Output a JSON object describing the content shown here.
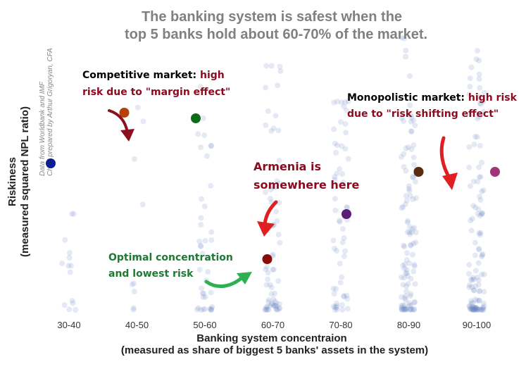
{
  "chart_data": {
    "type": "scatter",
    "title_line1": "The banking system is safest when the",
    "title_line2": "top 5 banks hold about 60-70% of the market.",
    "xlabel_line1": "Banking system concentraion",
    "xlabel_line2": "(measured as share of biggest 5 banks' assets in the system)",
    "ylabel_line1": "Riskiness",
    "ylabel_line2": "(measured squared NPL ratio)",
    "source_line1": "Data from Worldbank and IMF",
    "source_line2": "Chart prepared by Arthur Grigoryan, CFA",
    "categories": [
      "30-40",
      "40-50",
      "50-60",
      "60-70",
      "70-80",
      "80-90",
      "90-100"
    ],
    "means": [
      {
        "category": "30-40",
        "value": 0.52,
        "color": "#0a1f8f"
      },
      {
        "category": "40-50",
        "value": 0.7,
        "color": "#b5400c"
      },
      {
        "category": "50-60",
        "value": 0.68,
        "color": "#0f6b1c"
      },
      {
        "category": "60-70",
        "value": 0.18,
        "color": "#8b0a0a"
      },
      {
        "category": "70-80",
        "value": 0.34,
        "color": "#5b1f7a"
      },
      {
        "category": "80-90",
        "value": 0.49,
        "color": "#5a2b10"
      },
      {
        "category": "90-100",
        "value": 0.49,
        "color": "#a0337a"
      }
    ],
    "ylim": [
      0,
      1
    ],
    "grid": false,
    "annotations": {
      "competitive_prefix": "Competitive market: ",
      "competitive_high": "high",
      "competitive_line2": "risk due to \"margin effect\"",
      "monopolistic_prefix": "Monopolistic market: ",
      "monopolistic_high": "high risk",
      "monopolistic_line2": "due to \"risk shifting effect\"",
      "armenia_line1": "Armenia is",
      "armenia_line2": "somewhere here",
      "optimal_line1": "Optimal concentration",
      "optimal_line2": "and lowest risk"
    },
    "colors": {
      "title": "#808080",
      "points": "#6b86c4",
      "annotation_black": "#000000",
      "annotation_red": "#8b0a1e",
      "annotation_green": "#1e7a32",
      "arrow_red": "#e02020",
      "arrow_dark_red": "#8b1020",
      "arrow_green": "#2fb050"
    }
  }
}
